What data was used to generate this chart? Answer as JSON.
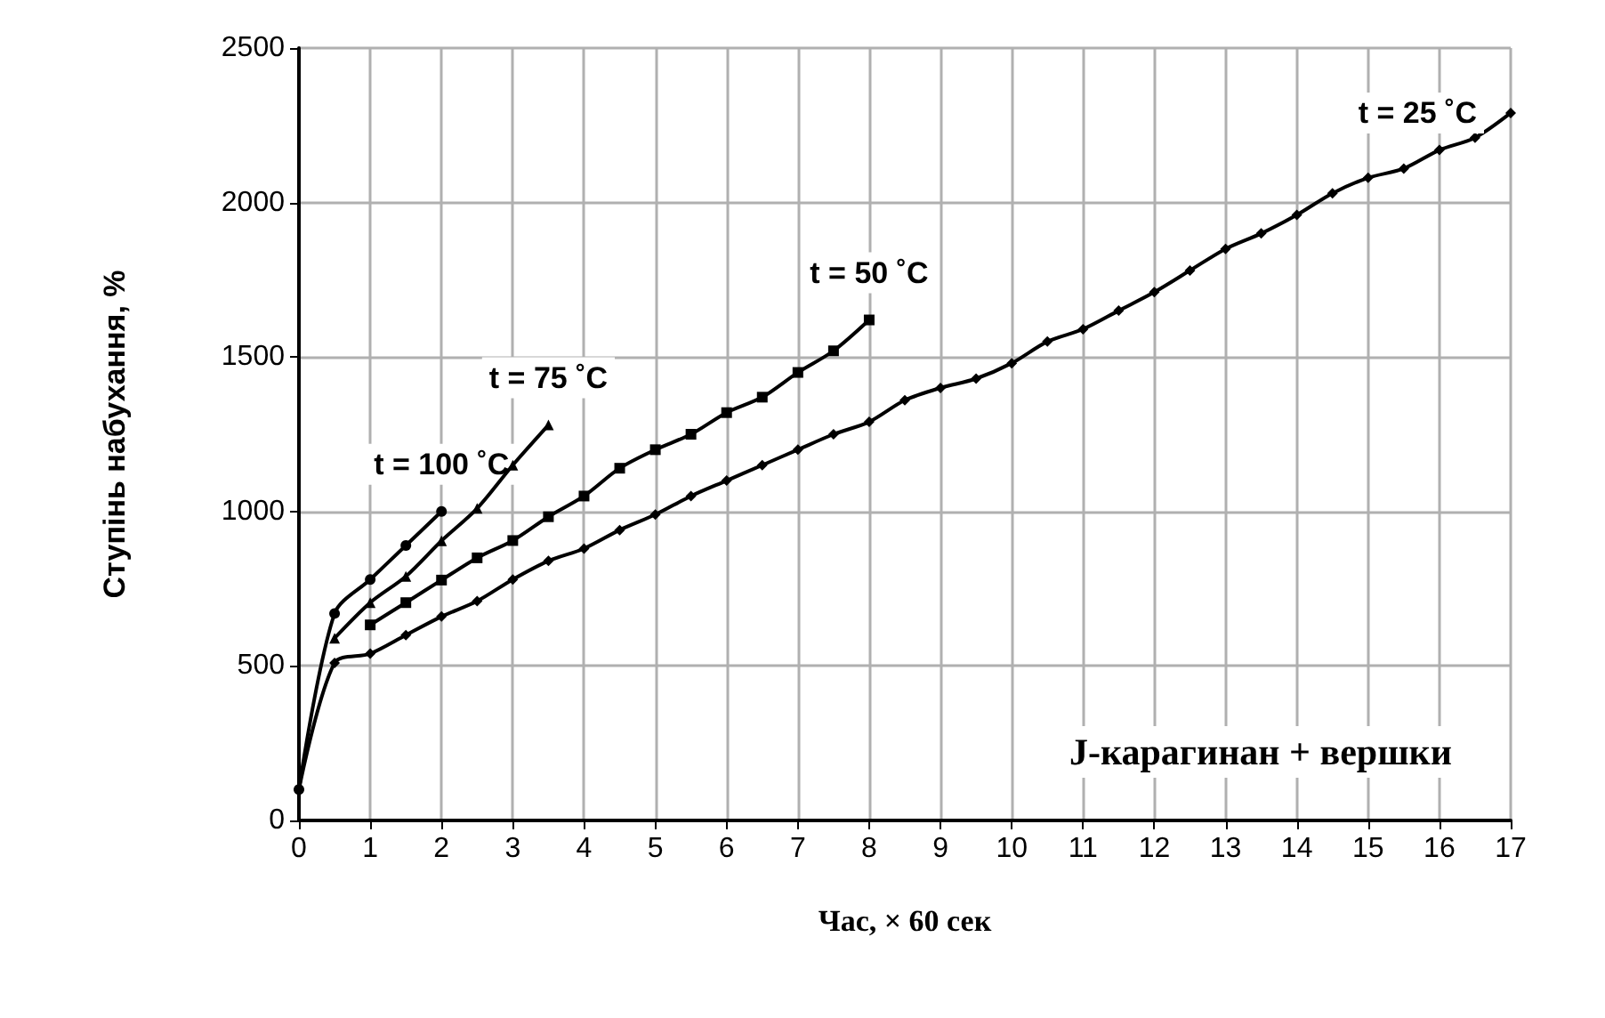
{
  "chart_data": {
    "type": "line",
    "xlabel": "Час, × 60 сек",
    "ylabel": "Ступінь набухання, %",
    "xlim": [
      0,
      17
    ],
    "xticks": [
      0,
      1,
      2,
      3,
      4,
      5,
      6,
      7,
      8,
      9,
      10,
      11,
      12,
      13,
      14,
      15,
      16,
      17
    ],
    "ylim": [
      0,
      2500
    ],
    "yticks": [
      0,
      500,
      1000,
      1500,
      2000,
      2500
    ],
    "grid": true,
    "legend": false,
    "line_style": "solid",
    "annotations": [
      "J-карагинан + вершки"
    ],
    "series": [
      {
        "name": "t = 100 ˚C",
        "color": "#000000",
        "marker": "circle",
        "x": [
          0,
          0.5,
          1,
          1.5,
          2
        ],
        "values": [
          100,
          670,
          780,
          890,
          1000
        ]
      },
      {
        "name": "t = 75 ˚C",
        "color": "#000000",
        "marker": "triangle",
        "x": [
          0.5,
          1,
          1.5,
          2,
          2.5,
          3,
          3.5
        ],
        "values": [
          590,
          705,
          790,
          905,
          1010,
          1150,
          1280
        ]
      },
      {
        "name": "t = 50 ˚C",
        "color": "#000000",
        "marker": "square",
        "x": [
          1,
          1.5,
          2,
          2.5,
          3,
          3.5,
          4,
          4.5,
          5,
          5.5,
          6,
          6.5,
          7,
          7.5,
          8
        ],
        "values": [
          633,
          705,
          778,
          850,
          906,
          983,
          1050,
          1140,
          1200,
          1250,
          1320,
          1370,
          1450,
          1520,
          1620
        ]
      },
      {
        "name": "t = 25 ˚C",
        "color": "#000000",
        "marker": "diamond",
        "x": [
          0,
          0.5,
          1,
          1.5,
          2,
          2.5,
          3,
          3.5,
          4,
          4.5,
          5,
          5.5,
          6,
          6.5,
          7,
          7.5,
          8,
          8.5,
          9,
          9.5,
          10,
          10.5,
          11,
          11.5,
          12,
          12.5,
          13,
          13.5,
          14,
          14.5,
          15,
          15.5,
          16,
          16.5,
          17
        ],
        "values": [
          100,
          510,
          540,
          600,
          660,
          710,
          780,
          840,
          880,
          940,
          990,
          1050,
          1100,
          1150,
          1200,
          1250,
          1290,
          1360,
          1400,
          1430,
          1480,
          1550,
          1590,
          1650,
          1710,
          1780,
          1850,
          1900,
          1960,
          2030,
          2080,
          2110,
          2170,
          2210,
          2290
        ]
      }
    ]
  }
}
